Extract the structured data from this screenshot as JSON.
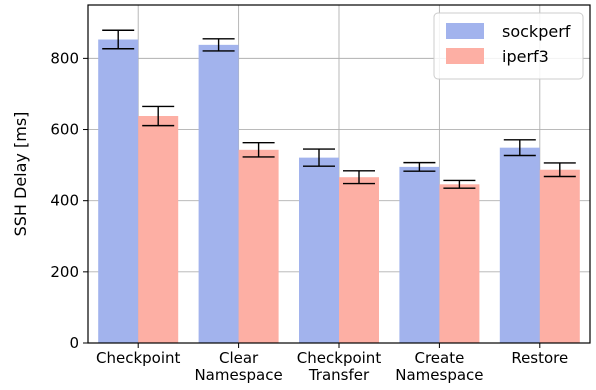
{
  "chart_data": {
    "type": "bar",
    "title": "",
    "xlabel": "",
    "ylabel": "SSH Delay [ms]",
    "ylim": [
      0,
      950
    ],
    "yticks": [
      0,
      200,
      400,
      600,
      800
    ],
    "grid": true,
    "legend_position": "top-right",
    "categories": [
      [
        "Checkpoint"
      ],
      [
        "Clear",
        "Namespace"
      ],
      [
        "Checkpoint",
        "Transfer"
      ],
      [
        "Create",
        "Namespace"
      ],
      [
        "Restore"
      ]
    ],
    "series": [
      {
        "name": "sockperf",
        "color": "#a2b3ed",
        "values": [
          853,
          838,
          521,
          495,
          549
        ],
        "errors": [
          26,
          17,
          24,
          12,
          22
        ]
      },
      {
        "name": "iperf3",
        "color": "#fdafa4",
        "values": [
          638,
          543,
          466,
          446,
          487
        ],
        "errors": [
          27,
          20,
          18,
          11,
          19
        ]
      }
    ]
  }
}
